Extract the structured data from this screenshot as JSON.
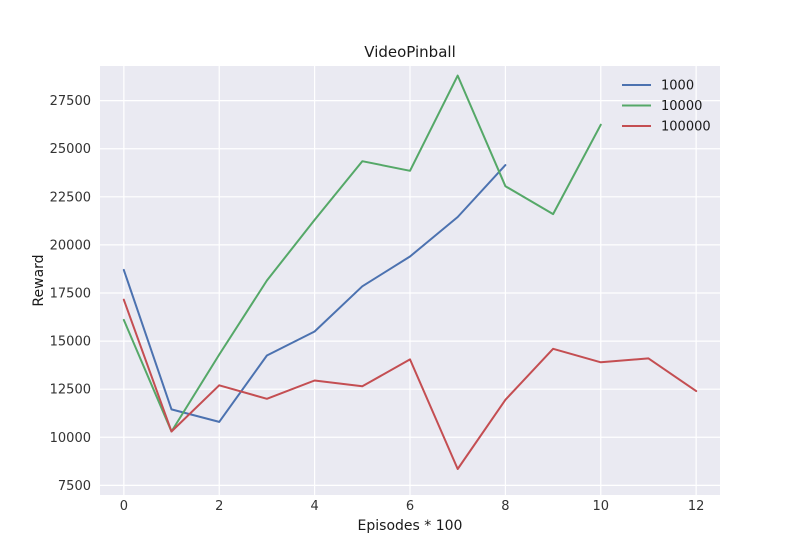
{
  "chart_data": {
    "type": "line",
    "title": "VideoPinball",
    "xlabel": "Episodes * 100",
    "ylabel": "Reward",
    "xlim": [
      -0.5,
      12.5
    ],
    "ylim": [
      7000,
      29300
    ],
    "xticks": [
      0,
      2,
      4,
      6,
      8,
      10,
      12
    ],
    "yticks": [
      7500,
      10000,
      12500,
      15000,
      17500,
      20000,
      22500,
      25000,
      27500
    ],
    "grid": true,
    "legend_position": "top-right",
    "colors": {
      "background": "#eaeaf2",
      "grid": "#ffffff"
    },
    "series": [
      {
        "name": "1000",
        "color": "#4c72b0",
        "x": [
          0,
          1,
          2,
          3,
          4,
          5,
          6,
          7,
          8
        ],
        "y": [
          18700,
          11450,
          10800,
          14250,
          15500,
          17850,
          19400,
          21450,
          24150
        ]
      },
      {
        "name": "10000",
        "color": "#55a868",
        "x": [
          0,
          1,
          2,
          3,
          4,
          5,
          6,
          7,
          8,
          9,
          10
        ],
        "y": [
          16100,
          10300,
          14300,
          18150,
          21300,
          24350,
          23850,
          28800,
          23050,
          21600,
          26250
        ]
      },
      {
        "name": "100000",
        "color": "#c44e52",
        "x": [
          0,
          1,
          2,
          3,
          4,
          5,
          6,
          7,
          8,
          9,
          10,
          11,
          12
        ],
        "y": [
          17150,
          10300,
          12700,
          12000,
          12950,
          12650,
          14050,
          8350,
          11950,
          14600,
          13900,
          14100,
          12400
        ]
      }
    ]
  }
}
